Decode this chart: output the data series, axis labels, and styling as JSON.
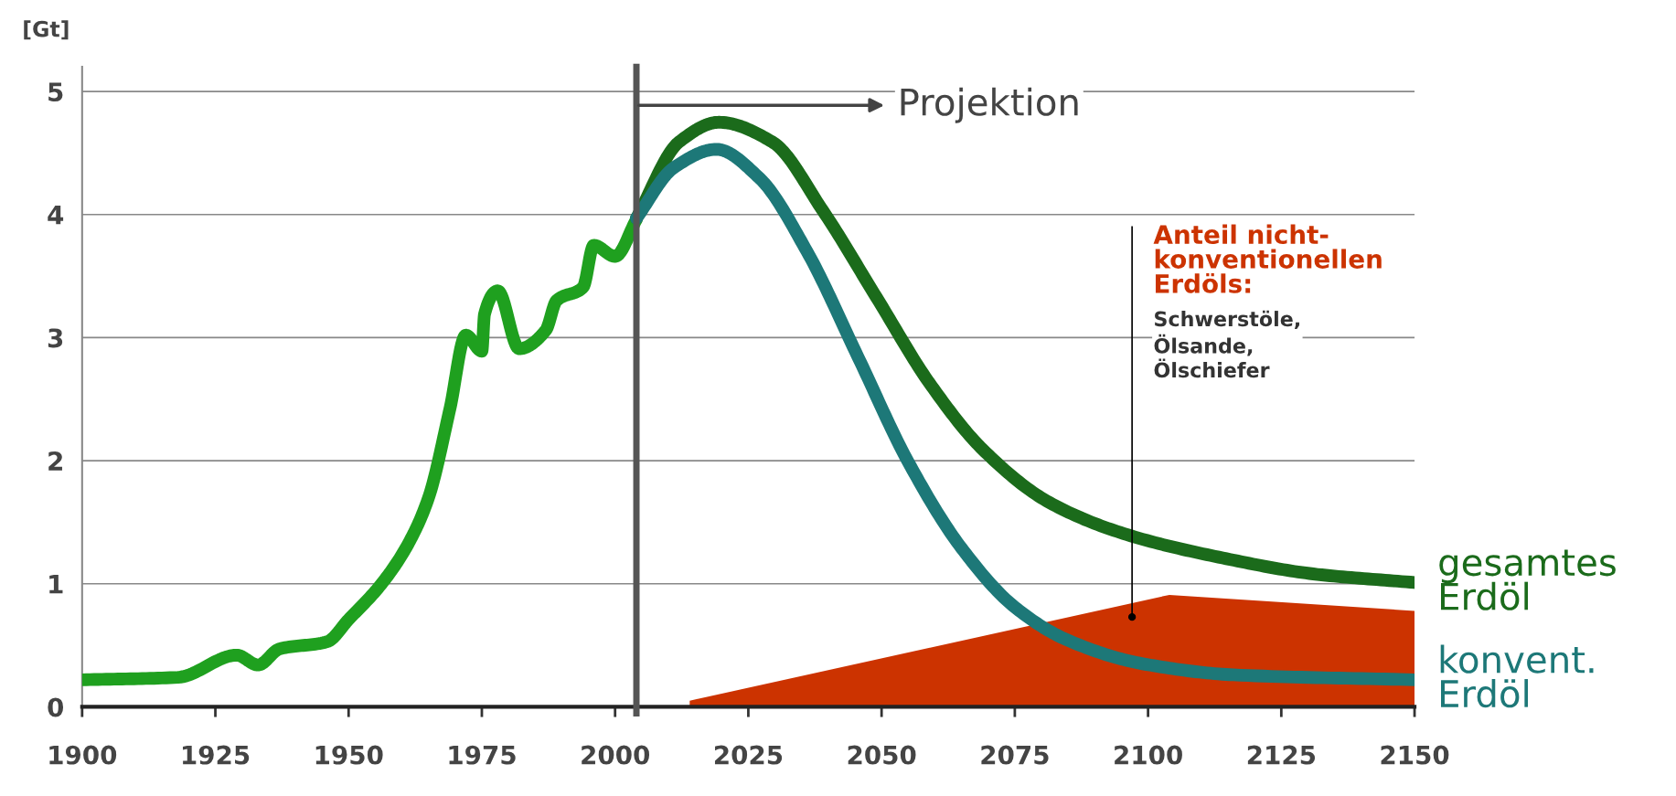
{
  "chart_data": {
    "type": "line",
    "ylabel": "[Gt]",
    "xlim": [
      1900,
      2150
    ],
    "ylim": [
      0,
      5.2
    ],
    "xticks": [
      1900,
      1925,
      1950,
      1975,
      2000,
      2025,
      2050,
      2075,
      2100,
      2125,
      2150
    ],
    "yticks": [
      0,
      1,
      2,
      3,
      4,
      5
    ],
    "grid": "y",
    "series": [
      {
        "type": "area",
        "color": "#cc3300",
        "x": [
          2014,
          2104,
          2150
        ],
        "values": [
          0.05,
          0.91,
          0.78
        ]
      },
      {
        "color": "#1fa01f",
        "x": [
          1900,
          1918,
          1929,
          1933,
          1937,
          1946,
          1950,
          1956,
          1961,
          1965,
          1969,
          1972,
          1975,
          1975.5,
          1978,
          1982,
          1987,
          1989,
          1994,
          1996,
          2000,
          2004
        ],
        "values": [
          0.22,
          0.24,
          0.42,
          0.34,
          0.47,
          0.53,
          0.71,
          0.99,
          1.31,
          1.7,
          2.42,
          3.02,
          2.89,
          3.19,
          3.38,
          2.91,
          3.06,
          3.3,
          3.41,
          3.75,
          3.66,
          3.96
        ]
      },
      {
        "name": "gesamtes Erdöl",
        "color": "#1b6b1b",
        "x": [
          2004,
          2012,
          2019.5,
          2029.5,
          2039,
          2049,
          2059,
          2069,
          2081.5,
          2096,
          2114,
          2131,
          2150
        ],
        "values": [
          3.97,
          4.59,
          4.75,
          4.59,
          4.03,
          3.33,
          2.63,
          2.09,
          1.66,
          1.4,
          1.21,
          1.08,
          1.01
        ]
      },
      {
        "name": "konvent. Erdöl",
        "color": "#1d7878",
        "x": [
          2004,
          2011,
          2019,
          2027,
          2036,
          2045.5,
          2055,
          2065,
          2075,
          2085,
          2099,
          2116,
          2150
        ],
        "values": [
          3.97,
          4.38,
          4.53,
          4.3,
          3.7,
          2.85,
          1.99,
          1.29,
          0.81,
          0.54,
          0.35,
          0.26,
          0.22
        ]
      }
    ],
    "ref_lines": [
      {
        "axis": "x",
        "value": 2004,
        "color": "#555555"
      }
    ],
    "annotations": [
      "Projektion",
      {
        "text": "Anteil nicht-\nkonventionellen\nErdöls:",
        "x": 2097,
        "y": 0.73
      },
      "Schwerstöle,\nÖlsande,\nÖlschiefer"
    ]
  }
}
